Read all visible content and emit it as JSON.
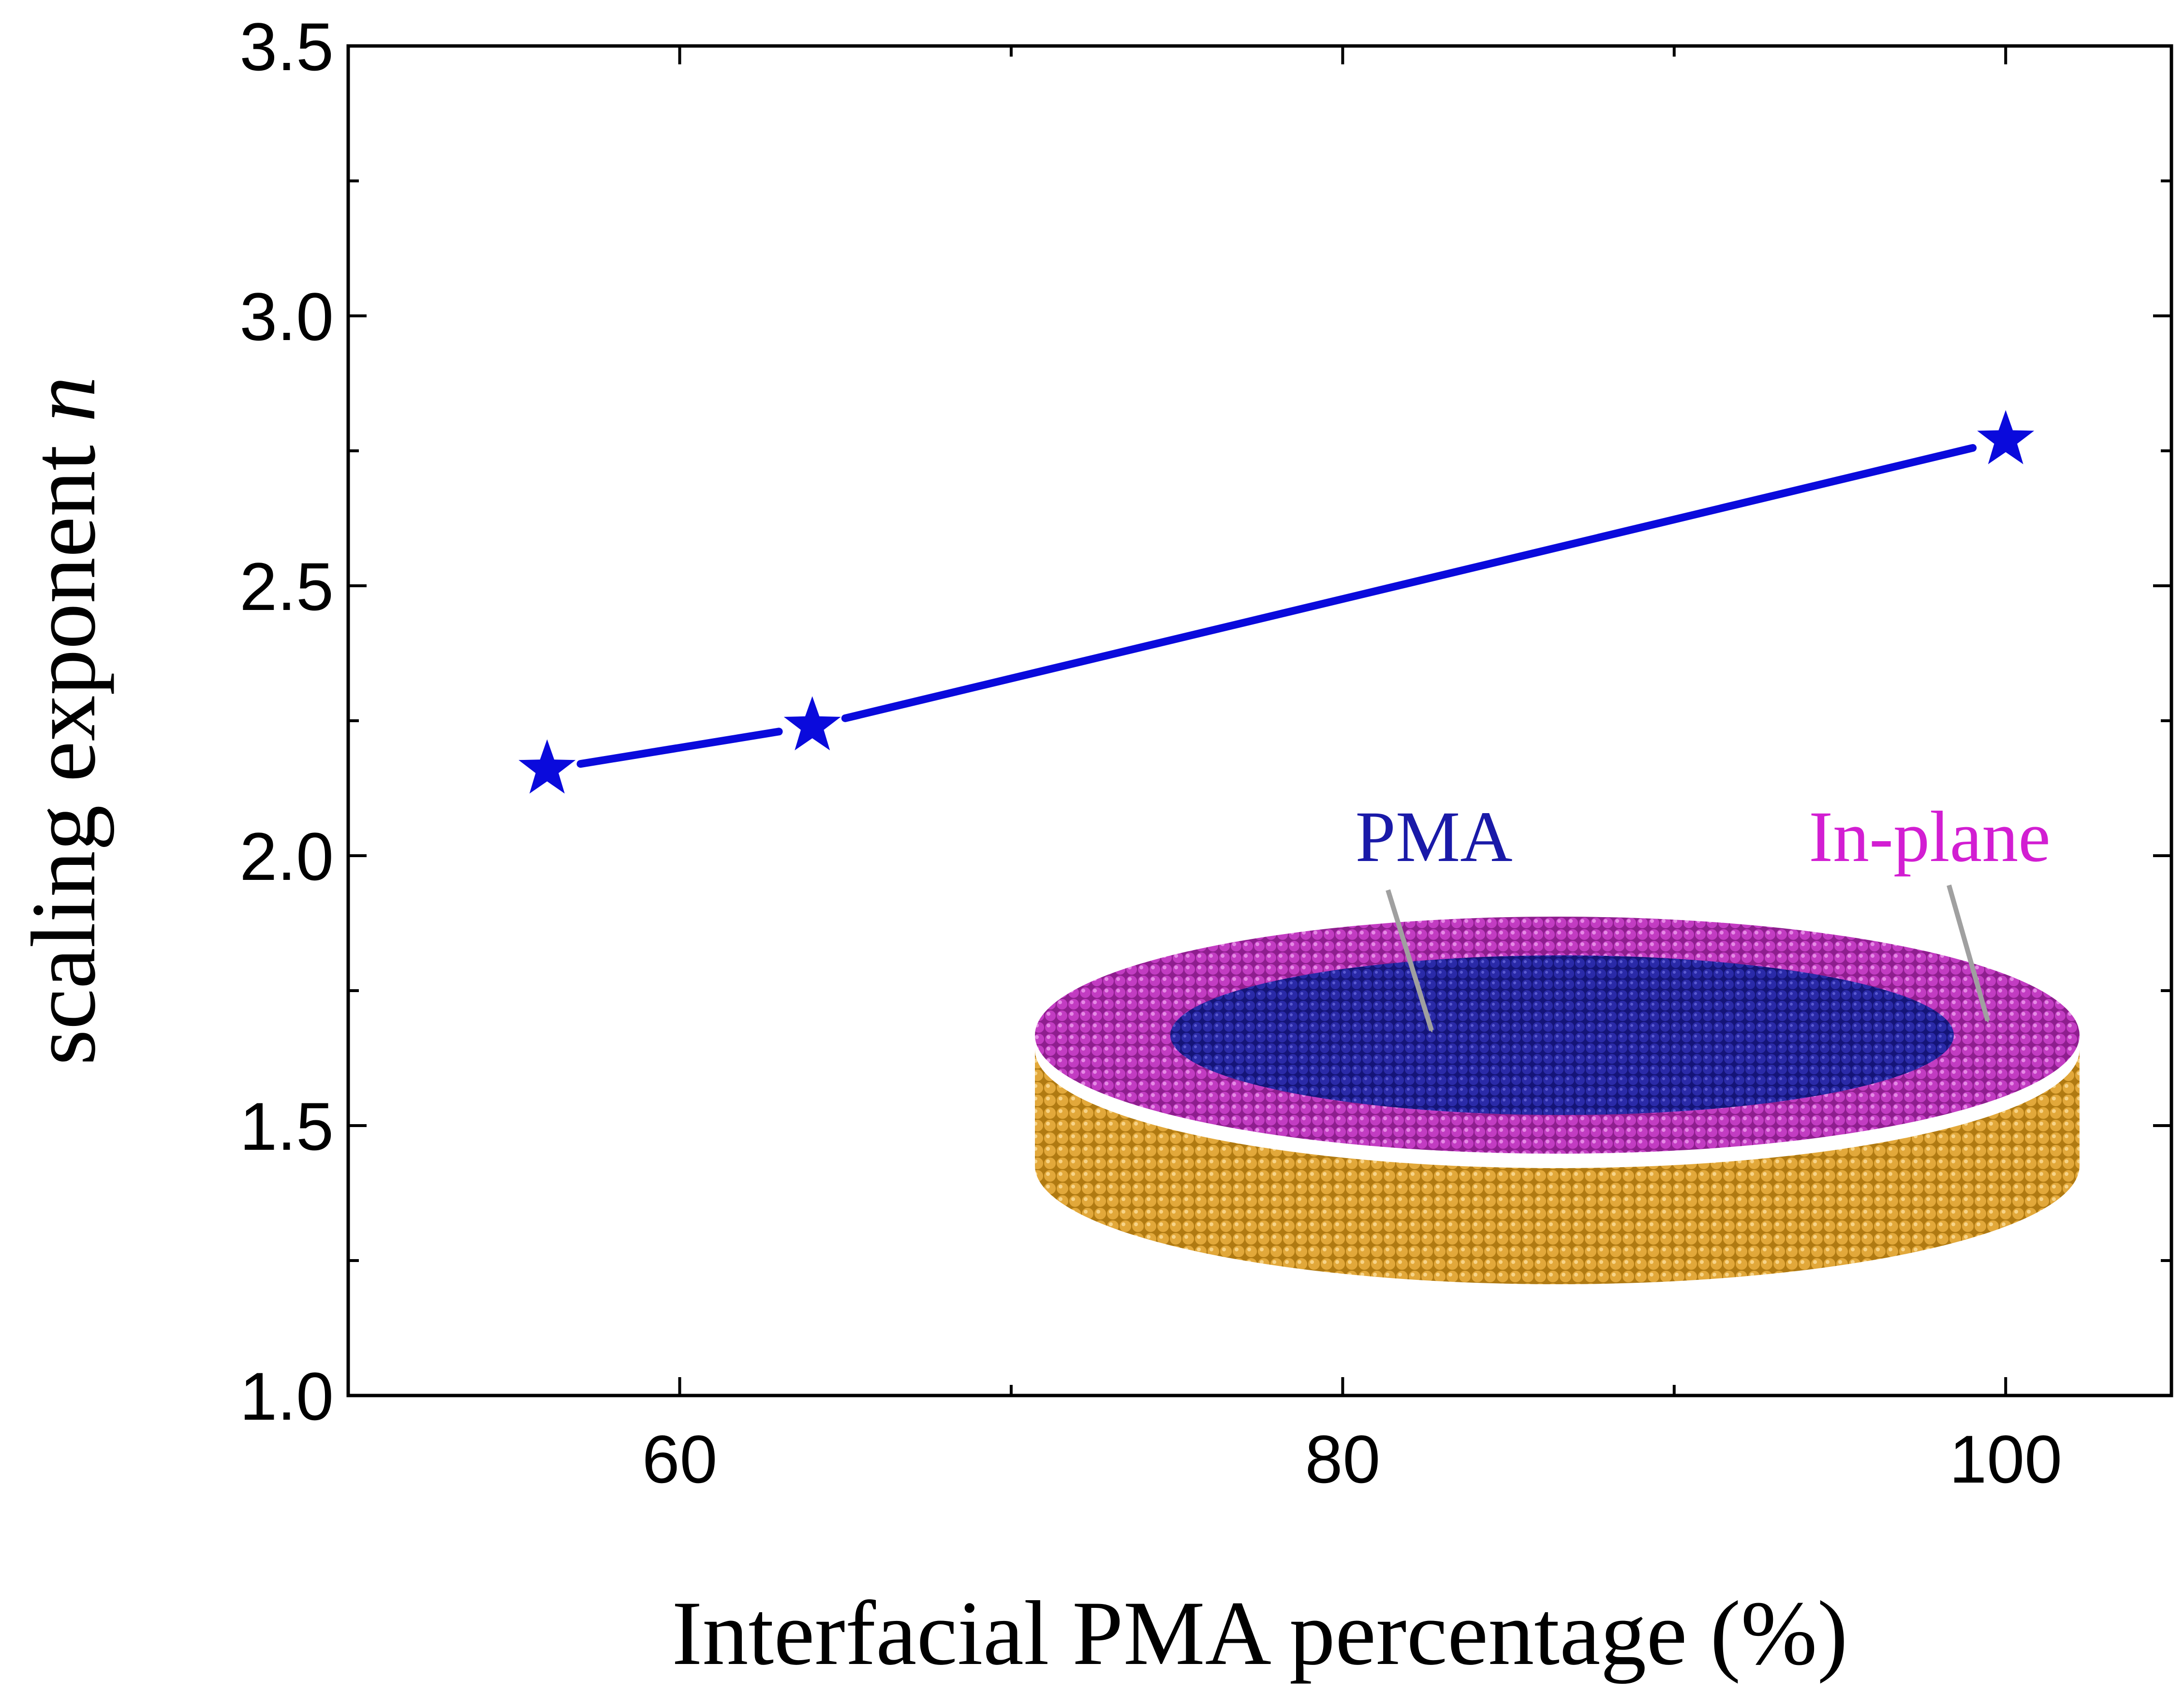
{
  "chart_data": {
    "type": "line",
    "xlabel": "Interfacial PMA percentage (%)",
    "ylabel_text": "scaling exponent ",
    "ylabel_symbol": "n",
    "xlim": [
      50,
      105
    ],
    "ylim": [
      1.0,
      3.5
    ],
    "x_ticks": [
      60,
      80,
      100
    ],
    "x_tick_labels": [
      "60",
      "80",
      "100"
    ],
    "y_ticks": [
      1.0,
      1.5,
      2.0,
      2.5,
      3.0,
      3.5
    ],
    "y_tick_labels": [
      "1.0",
      "1.5",
      "2.0",
      "2.5",
      "3.0",
      "3.5"
    ],
    "x_minor_ticks": [
      70,
      90
    ],
    "y_minor_ticks": [
      1.25,
      1.75,
      2.25,
      2.75,
      3.25
    ],
    "grid": false,
    "series": [
      {
        "marker": "star",
        "color": "#0a0adc",
        "x": [
          56,
          64,
          100
        ],
        "y": [
          2.16,
          2.24,
          2.77
        ]
      }
    ],
    "inset": {
      "labels": [
        {
          "text": "PMA",
          "color": "#1a1aa8"
        },
        {
          "text": "In-plane",
          "color": "#d21ed2"
        }
      ],
      "colors": {
        "top_center": "#1e1e96",
        "rim": "#b22cb2",
        "body": "#c8901c",
        "arrow": "#a0a0a0"
      }
    }
  }
}
